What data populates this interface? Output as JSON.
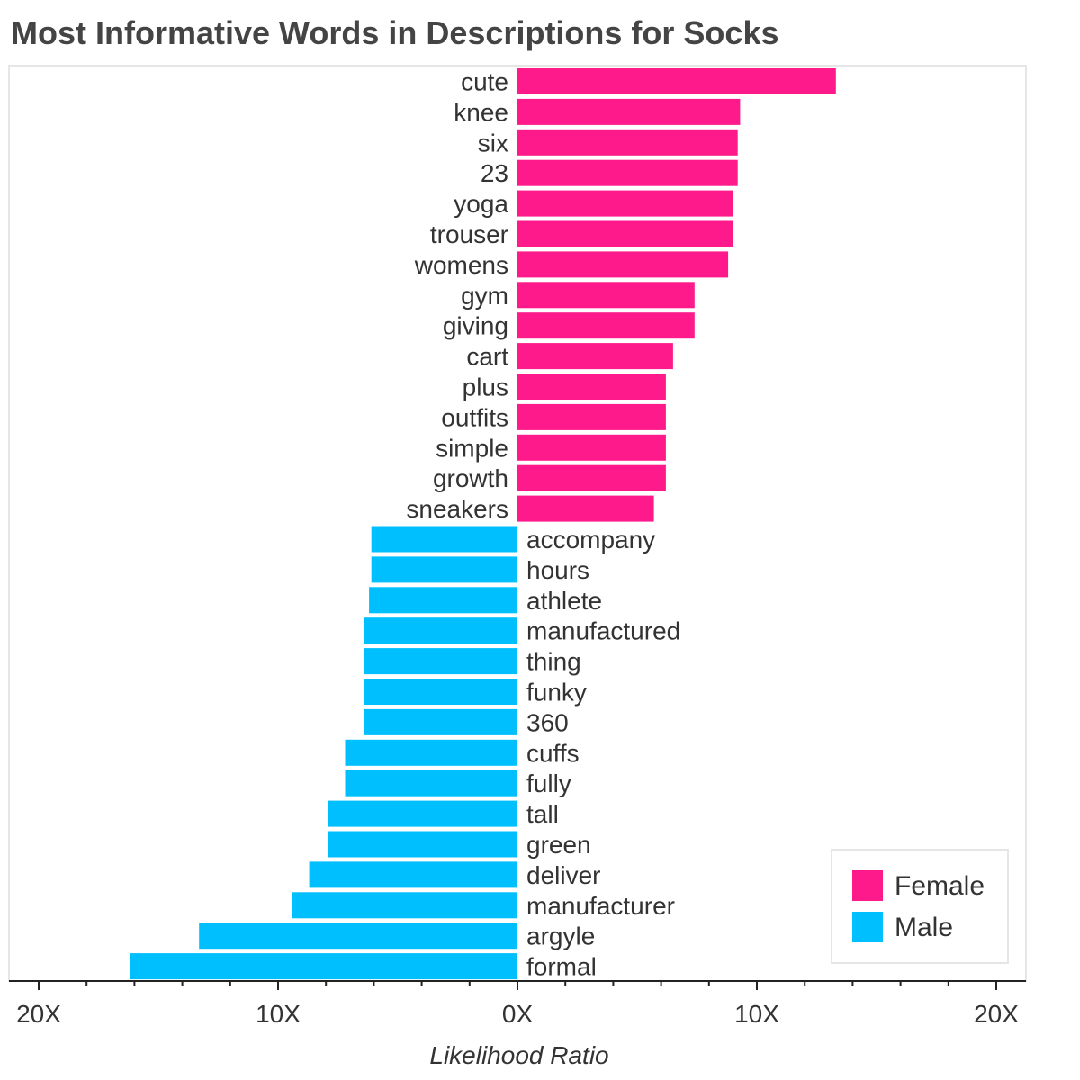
{
  "chart_data": {
    "type": "bar",
    "orientation": "horizontal-diverging",
    "title": "Most Informative Words in Descriptions for Socks",
    "xlabel": "Likelihood Ratio",
    "xlim": [
      -20,
      20
    ],
    "xticks": [
      -20,
      -10,
      0,
      10,
      20
    ],
    "xtick_labels": [
      "20X",
      "10X",
      "0X",
      "10X",
      "20X"
    ],
    "legend_position": "bottom-right",
    "grid": false,
    "series": [
      {
        "name": "Female",
        "color": "#ff1a8c",
        "side": "right",
        "categories": [
          "cute",
          "knee",
          "six",
          "23",
          "yoga",
          "trouser",
          "womens",
          "gym",
          "giving",
          "cart",
          "plus",
          "outfits",
          "simple",
          "growth",
          "sneakers"
        ],
        "values": [
          13.3,
          9.3,
          9.2,
          9.2,
          9.0,
          9.0,
          8.8,
          7.4,
          7.4,
          6.5,
          6.2,
          6.2,
          6.2,
          6.2,
          5.7
        ]
      },
      {
        "name": "Male",
        "color": "#00bfff",
        "side": "left",
        "categories": [
          "accompany",
          "hours",
          "athlete",
          "manufactured",
          "thing",
          "funky",
          "360",
          "cuffs",
          "fully",
          "tall",
          "green",
          "deliver",
          "manufacturer",
          "argyle",
          "formal"
        ],
        "values": [
          6.1,
          6.1,
          6.2,
          6.4,
          6.4,
          6.4,
          6.4,
          7.2,
          7.2,
          7.9,
          7.9,
          8.7,
          9.4,
          13.3,
          16.2
        ]
      }
    ]
  }
}
